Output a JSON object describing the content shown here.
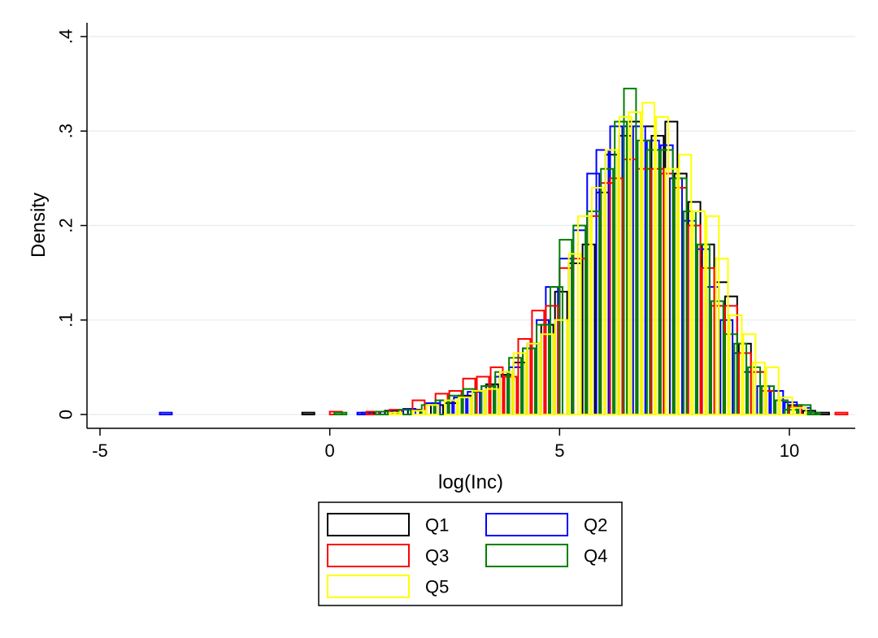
{
  "chart_data": {
    "type": "histogram",
    "xlabel": "log(Inc)",
    "ylabel": "Density",
    "xlim": [
      -5.3,
      11.8
    ],
    "ylim": [
      0,
      0.4
    ],
    "xticks": [
      {
        "value": -5,
        "label": "-5"
      },
      {
        "value": 0,
        "label": "0"
      },
      {
        "value": 5,
        "label": "5"
      },
      {
        "value": 10,
        "label": "10"
      }
    ],
    "yticks": [
      {
        "value": 0,
        "label": "0"
      },
      {
        "value": 0.1,
        "label": ".1"
      },
      {
        "value": 0.2,
        "label": ".2"
      },
      {
        "value": 0.3,
        "label": ".3"
      },
      {
        "value": 0.4,
        "label": ".4"
      }
    ],
    "grid": true,
    "legend": {
      "position": "bottom",
      "columns": 2
    },
    "series": [
      {
        "name": "Q1",
        "color": "#000000",
        "bin_width": 0.264,
        "bins": [
          [
            -0.6,
            0.002
          ],
          [
            0.7,
            0.002
          ],
          [
            1.2,
            0.004
          ],
          [
            1.7,
            0.005
          ],
          [
            2.2,
            0.01
          ],
          [
            2.5,
            0.012
          ],
          [
            2.8,
            0.02
          ],
          [
            3.1,
            0.025
          ],
          [
            3.4,
            0.032
          ],
          [
            3.7,
            0.042
          ],
          [
            4.0,
            0.055
          ],
          [
            4.3,
            0.075
          ],
          [
            4.6,
            0.095
          ],
          [
            4.9,
            0.13
          ],
          [
            5.2,
            0.16
          ],
          [
            5.5,
            0.18
          ],
          [
            5.8,
            0.235
          ],
          [
            6.0,
            0.275
          ],
          [
            6.3,
            0.295
          ],
          [
            6.5,
            0.31
          ],
          [
            6.8,
            0.305
          ],
          [
            7.0,
            0.295
          ],
          [
            7.3,
            0.31
          ],
          [
            7.5,
            0.255
          ],
          [
            7.8,
            0.225
          ],
          [
            8.1,
            0.18
          ],
          [
            8.4,
            0.14
          ],
          [
            8.6,
            0.125
          ],
          [
            8.9,
            0.075
          ],
          [
            9.2,
            0.045
          ],
          [
            9.5,
            0.025
          ],
          [
            9.7,
            0.015
          ],
          [
            10.0,
            0.01
          ],
          [
            10.3,
            0.004
          ],
          [
            10.6,
            0.002
          ]
        ]
      },
      {
        "name": "Q2",
        "color": "#0000ff",
        "bin_width": 0.264,
        "bins": [
          [
            -3.7,
            0.002
          ],
          [
            0.6,
            0.002
          ],
          [
            1.1,
            0.003
          ],
          [
            1.6,
            0.006
          ],
          [
            2.1,
            0.012
          ],
          [
            2.4,
            0.015
          ],
          [
            2.7,
            0.018
          ],
          [
            3.0,
            0.024
          ],
          [
            3.3,
            0.03
          ],
          [
            3.6,
            0.04
          ],
          [
            3.9,
            0.05
          ],
          [
            4.2,
            0.07
          ],
          [
            4.5,
            0.1
          ],
          [
            4.7,
            0.135
          ],
          [
            5.0,
            0.165
          ],
          [
            5.3,
            0.195
          ],
          [
            5.6,
            0.255
          ],
          [
            5.8,
            0.28
          ],
          [
            6.1,
            0.305
          ],
          [
            6.4,
            0.305
          ],
          [
            6.6,
            0.305
          ],
          [
            6.9,
            0.29
          ],
          [
            7.2,
            0.285
          ],
          [
            7.4,
            0.25
          ],
          [
            7.7,
            0.205
          ],
          [
            8.0,
            0.175
          ],
          [
            8.2,
            0.135
          ],
          [
            8.5,
            0.1
          ],
          [
            8.8,
            0.065
          ],
          [
            9.0,
            0.045
          ],
          [
            9.3,
            0.03
          ],
          [
            9.6,
            0.025
          ],
          [
            9.9,
            0.013
          ],
          [
            10.2,
            0.007
          ]
        ]
      },
      {
        "name": "Q3",
        "color": "#ff0000",
        "bin_width": 0.264,
        "bins": [
          [
            0.0,
            0.003
          ],
          [
            0.8,
            0.003
          ],
          [
            1.3,
            0.005
          ],
          [
            1.8,
            0.015
          ],
          [
            2.3,
            0.022
          ],
          [
            2.6,
            0.025
          ],
          [
            2.9,
            0.038
          ],
          [
            3.2,
            0.04
          ],
          [
            3.5,
            0.05
          ],
          [
            3.8,
            0.04
          ],
          [
            4.1,
            0.08
          ],
          [
            4.4,
            0.11
          ],
          [
            4.7,
            0.115
          ],
          [
            5.0,
            0.155
          ],
          [
            5.3,
            0.165
          ],
          [
            5.6,
            0.21
          ],
          [
            5.9,
            0.245
          ],
          [
            6.1,
            0.25
          ],
          [
            6.4,
            0.27
          ],
          [
            6.7,
            0.26
          ],
          [
            7.0,
            0.26
          ],
          [
            7.2,
            0.255
          ],
          [
            7.5,
            0.24
          ],
          [
            7.8,
            0.2
          ],
          [
            8.1,
            0.155
          ],
          [
            8.3,
            0.115
          ],
          [
            8.6,
            0.115
          ],
          [
            8.9,
            0.065
          ],
          [
            9.2,
            0.045
          ],
          [
            9.4,
            0.025
          ],
          [
            9.7,
            0.015
          ],
          [
            10.0,
            0.008
          ],
          [
            11.0,
            0.002
          ]
        ]
      },
      {
        "name": "Q4",
        "color": "#008000",
        "bin_width": 0.264,
        "bins": [
          [
            0.1,
            0.002
          ],
          [
            1.0,
            0.003
          ],
          [
            1.5,
            0.005
          ],
          [
            2.0,
            0.01
          ],
          [
            2.3,
            0.015
          ],
          [
            2.6,
            0.02
          ],
          [
            2.9,
            0.027
          ],
          [
            3.3,
            0.03
          ],
          [
            3.6,
            0.045
          ],
          [
            3.9,
            0.06
          ],
          [
            4.2,
            0.07
          ],
          [
            4.5,
            0.095
          ],
          [
            4.8,
            0.135
          ],
          [
            5.0,
            0.185
          ],
          [
            5.3,
            0.2
          ],
          [
            5.6,
            0.215
          ],
          [
            5.9,
            0.26
          ],
          [
            6.2,
            0.31
          ],
          [
            6.4,
            0.345
          ],
          [
            6.7,
            0.29
          ],
          [
            6.9,
            0.28
          ],
          [
            7.2,
            0.28
          ],
          [
            7.5,
            0.25
          ],
          [
            7.7,
            0.215
          ],
          [
            8.0,
            0.18
          ],
          [
            8.3,
            0.12
          ],
          [
            8.6,
            0.085
          ],
          [
            8.8,
            0.075
          ],
          [
            9.1,
            0.05
          ],
          [
            9.4,
            0.03
          ],
          [
            9.7,
            0.015
          ],
          [
            9.9,
            0.005
          ],
          [
            10.2,
            0.01
          ],
          [
            10.4,
            0.002
          ]
        ]
      },
      {
        "name": "Q5",
        "color": "#ffff00",
        "bin_width": 0.264,
        "bins": [
          [
            1.3,
            0.002
          ],
          [
            1.8,
            0.004
          ],
          [
            2.1,
            0.01
          ],
          [
            2.5,
            0.015
          ],
          [
            2.8,
            0.018
          ],
          [
            3.1,
            0.025
          ],
          [
            3.4,
            0.027
          ],
          [
            3.7,
            0.045
          ],
          [
            4.0,
            0.065
          ],
          [
            4.3,
            0.075
          ],
          [
            4.6,
            0.085
          ],
          [
            4.9,
            0.1
          ],
          [
            5.2,
            0.17
          ],
          [
            5.4,
            0.21
          ],
          [
            5.7,
            0.24
          ],
          [
            6.0,
            0.28
          ],
          [
            6.3,
            0.315
          ],
          [
            6.5,
            0.32
          ],
          [
            6.8,
            0.33
          ],
          [
            7.1,
            0.315
          ],
          [
            7.3,
            0.26
          ],
          [
            7.6,
            0.275
          ],
          [
            7.9,
            0.215
          ],
          [
            8.2,
            0.21
          ],
          [
            8.4,
            0.165
          ],
          [
            8.7,
            0.105
          ],
          [
            9.0,
            0.085
          ],
          [
            9.2,
            0.055
          ],
          [
            9.5,
            0.05
          ],
          [
            9.8,
            0.018
          ],
          [
            10.1,
            0.007
          ]
        ]
      }
    ]
  }
}
